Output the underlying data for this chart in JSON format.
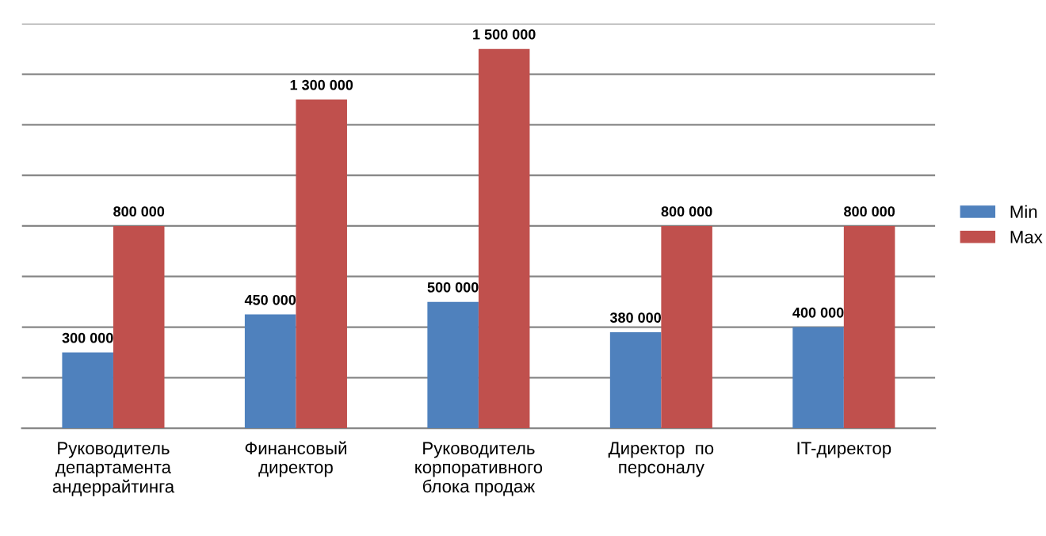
{
  "chart_data": {
    "type": "bar",
    "categories": [
      "Руководитель\nдепартамента\nандеррайтинга",
      "Финансовый\nдиректор",
      "Руководитель\nкорпоративного\nблока продаж",
      "Директор  по\nперсоналу",
      "IT-директор"
    ],
    "series": [
      {
        "name": "Min",
        "color": "#4f81bd",
        "values": [
          300000,
          450000,
          500000,
          380000,
          400000
        ],
        "value_labels": [
          "300 000",
          "450 000",
          "500 000",
          "380 000",
          "400 000"
        ]
      },
      {
        "name": "Max",
        "color": "#c0504d",
        "values": [
          800000,
          1300000,
          1500000,
          800000,
          800000
        ],
        "value_labels": [
          "800 000",
          "1 300 000",
          "1 500 000",
          "800 000",
          "800 000"
        ]
      }
    ],
    "ylim": [
      0,
      1600000
    ],
    "yticks": [
      {
        "value": 0,
        "label": null
      },
      {
        "value": 200000,
        "label": null
      },
      {
        "value": 400000,
        "label": null
      },
      {
        "value": 600000,
        "label": null
      },
      {
        "value": 800000,
        "label": null
      },
      {
        "value": 1000000,
        "label": null
      },
      {
        "value": 1200000,
        "label": null
      },
      {
        "value": 1400000,
        "label": null
      },
      {
        "value": 1600000,
        "label": null
      }
    ],
    "grid": "y",
    "legend": "right",
    "tick_labels": "x"
  }
}
